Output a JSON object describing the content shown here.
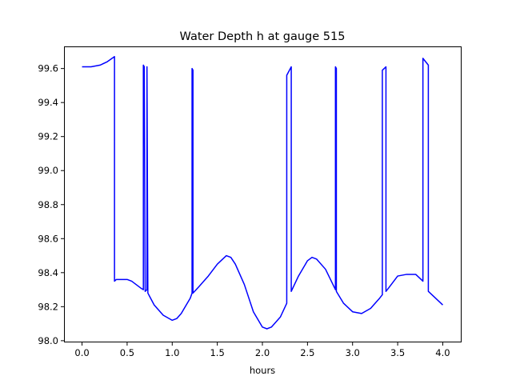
{
  "chart_data": {
    "type": "line",
    "title": "Water Depth h at gauge 515",
    "xlabel": "hours",
    "ylabel": "",
    "xlim": [
      -0.2,
      4.2
    ],
    "ylim": [
      97.99,
      99.73
    ],
    "xticks": [
      0.0,
      0.5,
      1.0,
      1.5,
      2.0,
      2.5,
      3.0,
      3.5,
      4.0
    ],
    "xtick_labels": [
      "0.0",
      "0.5",
      "1.0",
      "1.5",
      "2.0",
      "2.5",
      "3.0",
      "3.5",
      "4.0"
    ],
    "yticks": [
      98.0,
      98.2,
      98.4,
      98.6,
      98.8,
      99.0,
      99.2,
      99.4,
      99.6
    ],
    "ytick_labels": [
      "98.0",
      "98.2",
      "98.4",
      "98.6",
      "98.8",
      "99.0",
      "99.2",
      "99.4",
      "99.6"
    ],
    "grid": false,
    "legend": "none",
    "series": [
      {
        "color": "#0000ff",
        "x": [
          0.0,
          0.1,
          0.2,
          0.28,
          0.36,
          0.36,
          0.38,
          0.42,
          0.5,
          0.55,
          0.6,
          0.65,
          0.68,
          0.68,
          0.69,
          0.7,
          0.72,
          0.72,
          0.73,
          0.75,
          0.8,
          0.9,
          1.0,
          1.05,
          1.1,
          1.2,
          1.22,
          1.22,
          1.23,
          1.23,
          1.3,
          1.4,
          1.5,
          1.6,
          1.65,
          1.7,
          1.8,
          1.9,
          2.0,
          2.05,
          2.1,
          2.2,
          2.27,
          2.27,
          2.32,
          2.32,
          2.4,
          2.5,
          2.55,
          2.6,
          2.7,
          2.81,
          2.81,
          2.82,
          2.82,
          2.9,
          3.0,
          3.1,
          3.2,
          3.3,
          3.33,
          3.33,
          3.37,
          3.37,
          3.4,
          3.5,
          3.6,
          3.7,
          3.78,
          3.78,
          3.84,
          3.84,
          3.9,
          4.0
        ],
        "values": [
          99.61,
          99.61,
          99.62,
          99.64,
          99.67,
          98.35,
          98.36,
          98.36,
          98.36,
          98.35,
          98.33,
          98.31,
          98.3,
          99.62,
          99.61,
          98.29,
          98.3,
          99.61,
          98.28,
          98.26,
          98.21,
          98.15,
          98.12,
          98.13,
          98.16,
          98.25,
          98.28,
          99.6,
          99.59,
          98.28,
          98.32,
          98.38,
          98.45,
          98.5,
          98.49,
          98.45,
          98.33,
          98.17,
          98.08,
          98.07,
          98.08,
          98.14,
          98.22,
          99.56,
          99.61,
          98.29,
          98.38,
          98.47,
          98.49,
          98.48,
          98.42,
          98.3,
          99.61,
          99.6,
          98.29,
          98.22,
          98.17,
          98.16,
          98.19,
          98.25,
          98.27,
          99.59,
          99.61,
          98.29,
          98.31,
          98.38,
          98.39,
          98.39,
          98.35,
          99.66,
          99.62,
          98.29,
          98.26,
          98.21
        ]
      }
    ]
  }
}
